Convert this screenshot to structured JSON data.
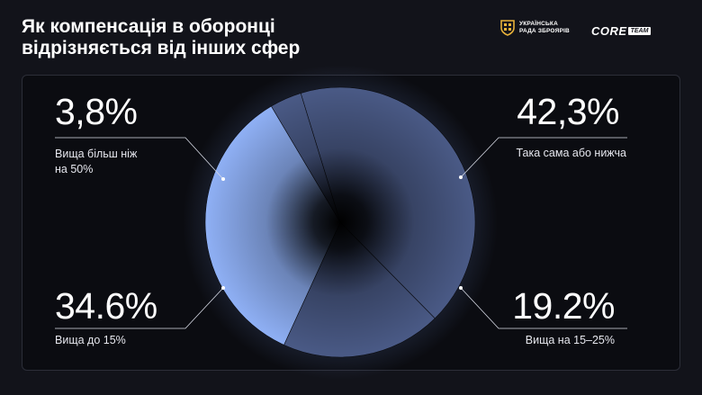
{
  "title": {
    "line1": "Як компенсація в оборонці",
    "line2": "відрізняється від інших сфер"
  },
  "logos": {
    "urz_line1": "УКРАЇНСЬКА",
    "urz_line2": "РАДА ЗБРОЯРІВ",
    "core": "CORE",
    "team": "TEAM"
  },
  "colors": {
    "background": "#12131a",
    "slice_dark": "#4a5a86",
    "slice_light": "#8fb0f5"
  },
  "chart_data": {
    "type": "pie",
    "slices": [
      {
        "label": "Така сама або нижча",
        "value": 42.3,
        "display": "42,3%"
      },
      {
        "label": "Вища на 15–25%",
        "value": 19.2,
        "display": "19.2%"
      },
      {
        "label": "Вища до 15%",
        "value": 34.6,
        "display": "34.6%"
      },
      {
        "label": "Вища більш ніж на 50%",
        "value": 3.8,
        "display": "3,8%"
      }
    ]
  },
  "stats": {
    "s1": {
      "value": "3,8%",
      "label_line1": "Вища більш ніж",
      "label_line2": "на 50%"
    },
    "s2": {
      "value": "42,3%",
      "label": "Така сама або нижча"
    },
    "s3": {
      "value": "34.6%",
      "label": "Вища до 15%"
    },
    "s4": {
      "value": "19.2%",
      "label": "Вища на 15–25%"
    }
  }
}
